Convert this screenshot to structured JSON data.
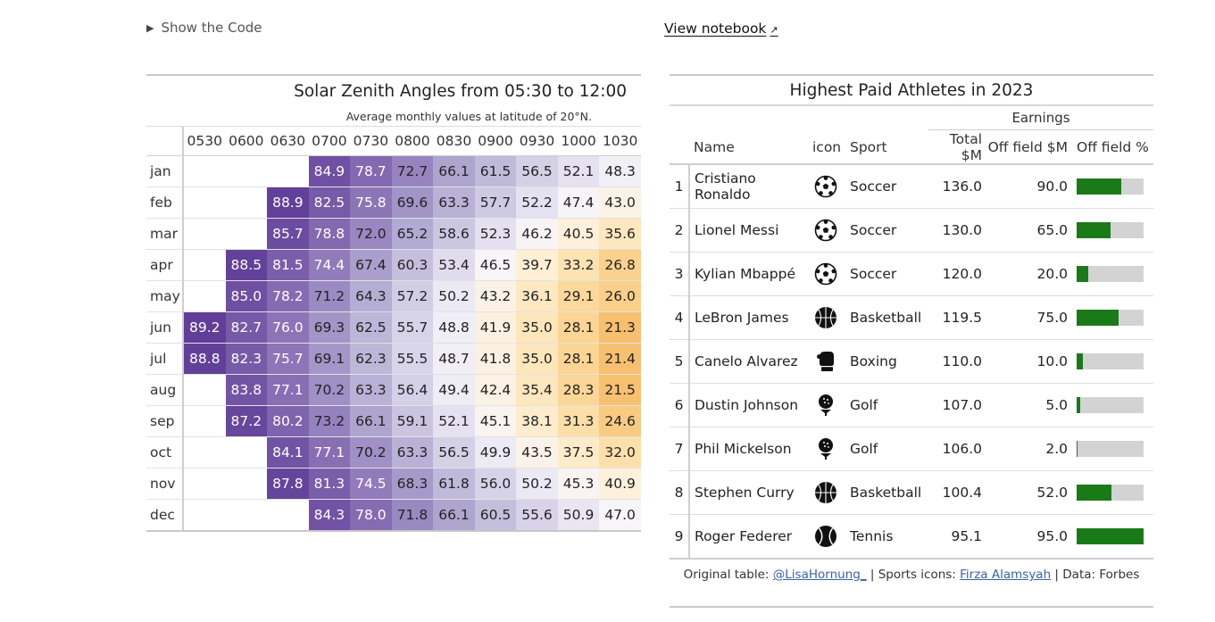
{
  "show_code": "Show the Code",
  "view_notebook": "View notebook",
  "solar": {
    "title": "Solar Zenith Angles from 05:30 to 12:00",
    "subtitle": "Average monthly values at latitude of 20°N.",
    "columns": [
      "0530",
      "0600",
      "0630",
      "0700",
      "0730",
      "0800",
      "0830",
      "0900",
      "0930",
      "1000",
      "1030"
    ],
    "rows": [
      {
        "month": "jan",
        "values": [
          null,
          null,
          null,
          84.9,
          78.7,
          72.7,
          66.1,
          61.5,
          56.5,
          52.1,
          48.3
        ]
      },
      {
        "month": "feb",
        "values": [
          null,
          null,
          88.9,
          82.5,
          75.8,
          69.6,
          63.3,
          57.7,
          52.2,
          47.4,
          43.0
        ]
      },
      {
        "month": "mar",
        "values": [
          null,
          null,
          85.7,
          78.8,
          72.0,
          65.2,
          58.6,
          52.3,
          46.2,
          40.5,
          35.6
        ]
      },
      {
        "month": "apr",
        "values": [
          null,
          88.5,
          81.5,
          74.4,
          67.4,
          60.3,
          53.4,
          46.5,
          39.7,
          33.2,
          26.8
        ]
      },
      {
        "month": "may",
        "values": [
          null,
          85.0,
          78.2,
          71.2,
          64.3,
          57.2,
          50.2,
          43.2,
          36.1,
          29.1,
          26.0
        ]
      },
      {
        "month": "jun",
        "values": [
          89.2,
          82.7,
          76.0,
          69.3,
          62.5,
          55.7,
          48.8,
          41.9,
          35.0,
          28.1,
          21.3
        ]
      },
      {
        "month": "jul",
        "values": [
          88.8,
          82.3,
          75.7,
          69.1,
          62.3,
          55.5,
          48.7,
          41.8,
          35.0,
          28.1,
          21.4
        ]
      },
      {
        "month": "aug",
        "values": [
          null,
          83.8,
          77.1,
          70.2,
          63.3,
          56.4,
          49.4,
          42.4,
          35.4,
          28.3,
          21.5
        ]
      },
      {
        "month": "sep",
        "values": [
          null,
          87.2,
          80.2,
          73.2,
          66.1,
          59.1,
          52.1,
          45.1,
          38.1,
          31.3,
          24.6
        ]
      },
      {
        "month": "oct",
        "values": [
          null,
          null,
          84.1,
          77.1,
          70.2,
          63.3,
          56.5,
          49.9,
          43.5,
          37.5,
          32.0
        ]
      },
      {
        "month": "nov",
        "values": [
          null,
          null,
          87.8,
          81.3,
          74.5,
          68.3,
          61.8,
          56.0,
          50.2,
          45.3,
          40.9
        ]
      },
      {
        "month": "dec",
        "values": [
          null,
          null,
          null,
          84.3,
          78.0,
          71.8,
          66.1,
          60.5,
          55.6,
          50.9,
          47.0
        ]
      }
    ]
  },
  "athletes": {
    "title": "Highest Paid Athletes in 2023",
    "spanner": "Earnings",
    "headers": {
      "name": "Name",
      "icon": "icon",
      "sport": "Sport",
      "total": "Total $M",
      "offfield": "Off field $M",
      "pct": "Off field %"
    },
    "rows": [
      {
        "rank": "1",
        "name": "Cristiano Ronaldo",
        "icon": "soccer-ball-icon",
        "sport": "Soccer",
        "total": "136.0",
        "offfield": "90.0",
        "pct": 0.662
      },
      {
        "rank": "2",
        "name": "Lionel Messi",
        "icon": "soccer-ball-icon",
        "sport": "Soccer",
        "total": "130.0",
        "offfield": "65.0",
        "pct": 0.5
      },
      {
        "rank": "3",
        "name": "Kylian Mbappé",
        "icon": "soccer-ball-icon",
        "sport": "Soccer",
        "total": "120.0",
        "offfield": "20.0",
        "pct": 0.167
      },
      {
        "rank": "4",
        "name": "LeBron James",
        "icon": "basketball-icon",
        "sport": "Basketball",
        "total": "119.5",
        "offfield": "75.0",
        "pct": 0.628
      },
      {
        "rank": "5",
        "name": "Canelo Alvarez",
        "icon": "boxing-glove-icon",
        "sport": "Boxing",
        "total": "110.0",
        "offfield": "10.0",
        "pct": 0.091
      },
      {
        "rank": "6",
        "name": "Dustin Johnson",
        "icon": "golf-ball-tee-icon",
        "sport": "Golf",
        "total": "107.0",
        "offfield": "5.0",
        "pct": 0.047
      },
      {
        "rank": "7",
        "name": "Phil Mickelson",
        "icon": "golf-ball-tee-icon",
        "sport": "Golf",
        "total": "106.0",
        "offfield": "2.0",
        "pct": 0.019
      },
      {
        "rank": "8",
        "name": "Stephen Curry",
        "icon": "basketball-icon",
        "sport": "Basketball",
        "total": "100.4",
        "offfield": "52.0",
        "pct": 0.518
      },
      {
        "rank": "9",
        "name": "Roger Federer",
        "icon": "tennis-ball-icon",
        "sport": "Tennis",
        "total": "95.1",
        "offfield": "95.0",
        "pct": 0.999
      }
    ],
    "colors": {
      "bar_fill": "#1a7a18",
      "bar_bg": "#d3d3d3"
    }
  },
  "source": {
    "prefix": "Original table: ",
    "link1": "@LisaHornung_",
    "mid": " | Sports icons: ",
    "link2": "Firza Alamsyah",
    "suffix": " | Data: Forbes"
  }
}
